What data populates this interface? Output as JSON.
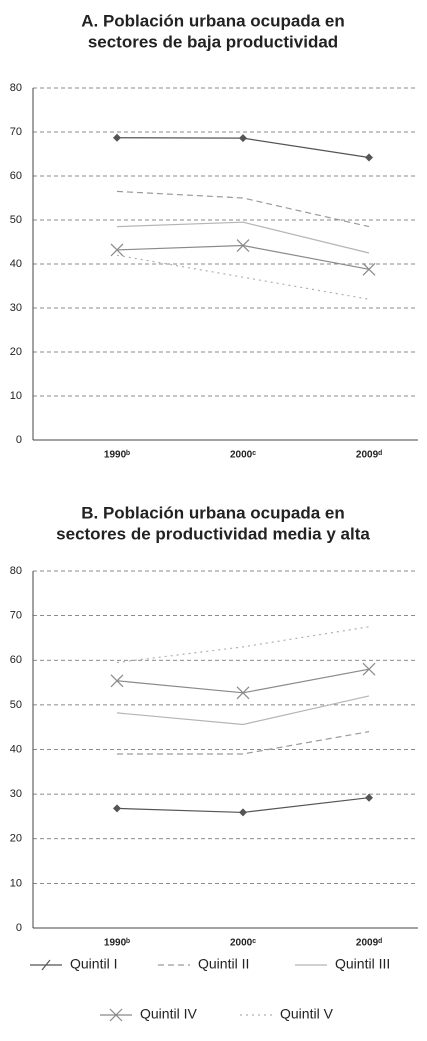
{
  "chart_data": [
    {
      "type": "line",
      "title": [
        "A. Población urbana ocupada en",
        "sectores de baja productividad"
      ],
      "categories": [
        "1990ᵇ",
        "2000ᶜ",
        "2009ᵈ"
      ],
      "ylim": [
        0,
        80
      ],
      "yticks": [
        0,
        10,
        20,
        30,
        40,
        50,
        60,
        70,
        80
      ],
      "grid": true,
      "series": [
        {
          "name": "Quintil I",
          "color": "#555555",
          "line_style": "solid",
          "marker": "diamond",
          "values": [
            68.7,
            68.6,
            64.2
          ]
        },
        {
          "name": "Quintil II",
          "color": "#9a9a9a",
          "line_style": "dashed",
          "values": [
            56.5,
            55,
            48.5
          ]
        },
        {
          "name": "Quintil III",
          "color": "#b5b5b5",
          "line_style": "solid",
          "values": [
            48.5,
            49.5,
            42.5
          ]
        },
        {
          "name": "Quintil IV",
          "color": "#8a8a8a",
          "line_style": "solid",
          "marker": "x",
          "values": [
            43.2,
            44.2,
            38.8
          ]
        },
        {
          "name": "Quintil V",
          "color": "#b0b0b0",
          "line_style": "dotted",
          "values": [
            42,
            37,
            32
          ]
        }
      ]
    },
    {
      "type": "line",
      "title": [
        "B. Población urbana ocupada en",
        "sectores de productividad media y alta"
      ],
      "categories": [
        "1990ᵇ",
        "2000ᶜ",
        "2009ᵈ"
      ],
      "ylim": [
        0,
        80
      ],
      "yticks": [
        0,
        10,
        20,
        30,
        40,
        50,
        60,
        70,
        80
      ],
      "grid": true,
      "series": [
        {
          "color": "#555555",
          "line_style": "solid",
          "marker": "diamond",
          "values": [
            26.8,
            25.9,
            29.2
          ]
        },
        {
          "color": "#9a9a9a",
          "line_style": "dashed",
          "values": [
            39,
            39,
            44
          ]
        },
        {
          "color": "#b5b5b5",
          "line_style": "solid",
          "values": [
            48.2,
            45.6,
            52
          ]
        },
        {
          "color": "#8a8a8a",
          "line_style": "solid",
          "marker": "x",
          "values": [
            55.4,
            52.7,
            58
          ]
        },
        {
          "color": "#b0b0b0",
          "line_style": "dotted",
          "values": [
            59.5,
            63,
            67.5
          ]
        }
      ]
    }
  ]
}
